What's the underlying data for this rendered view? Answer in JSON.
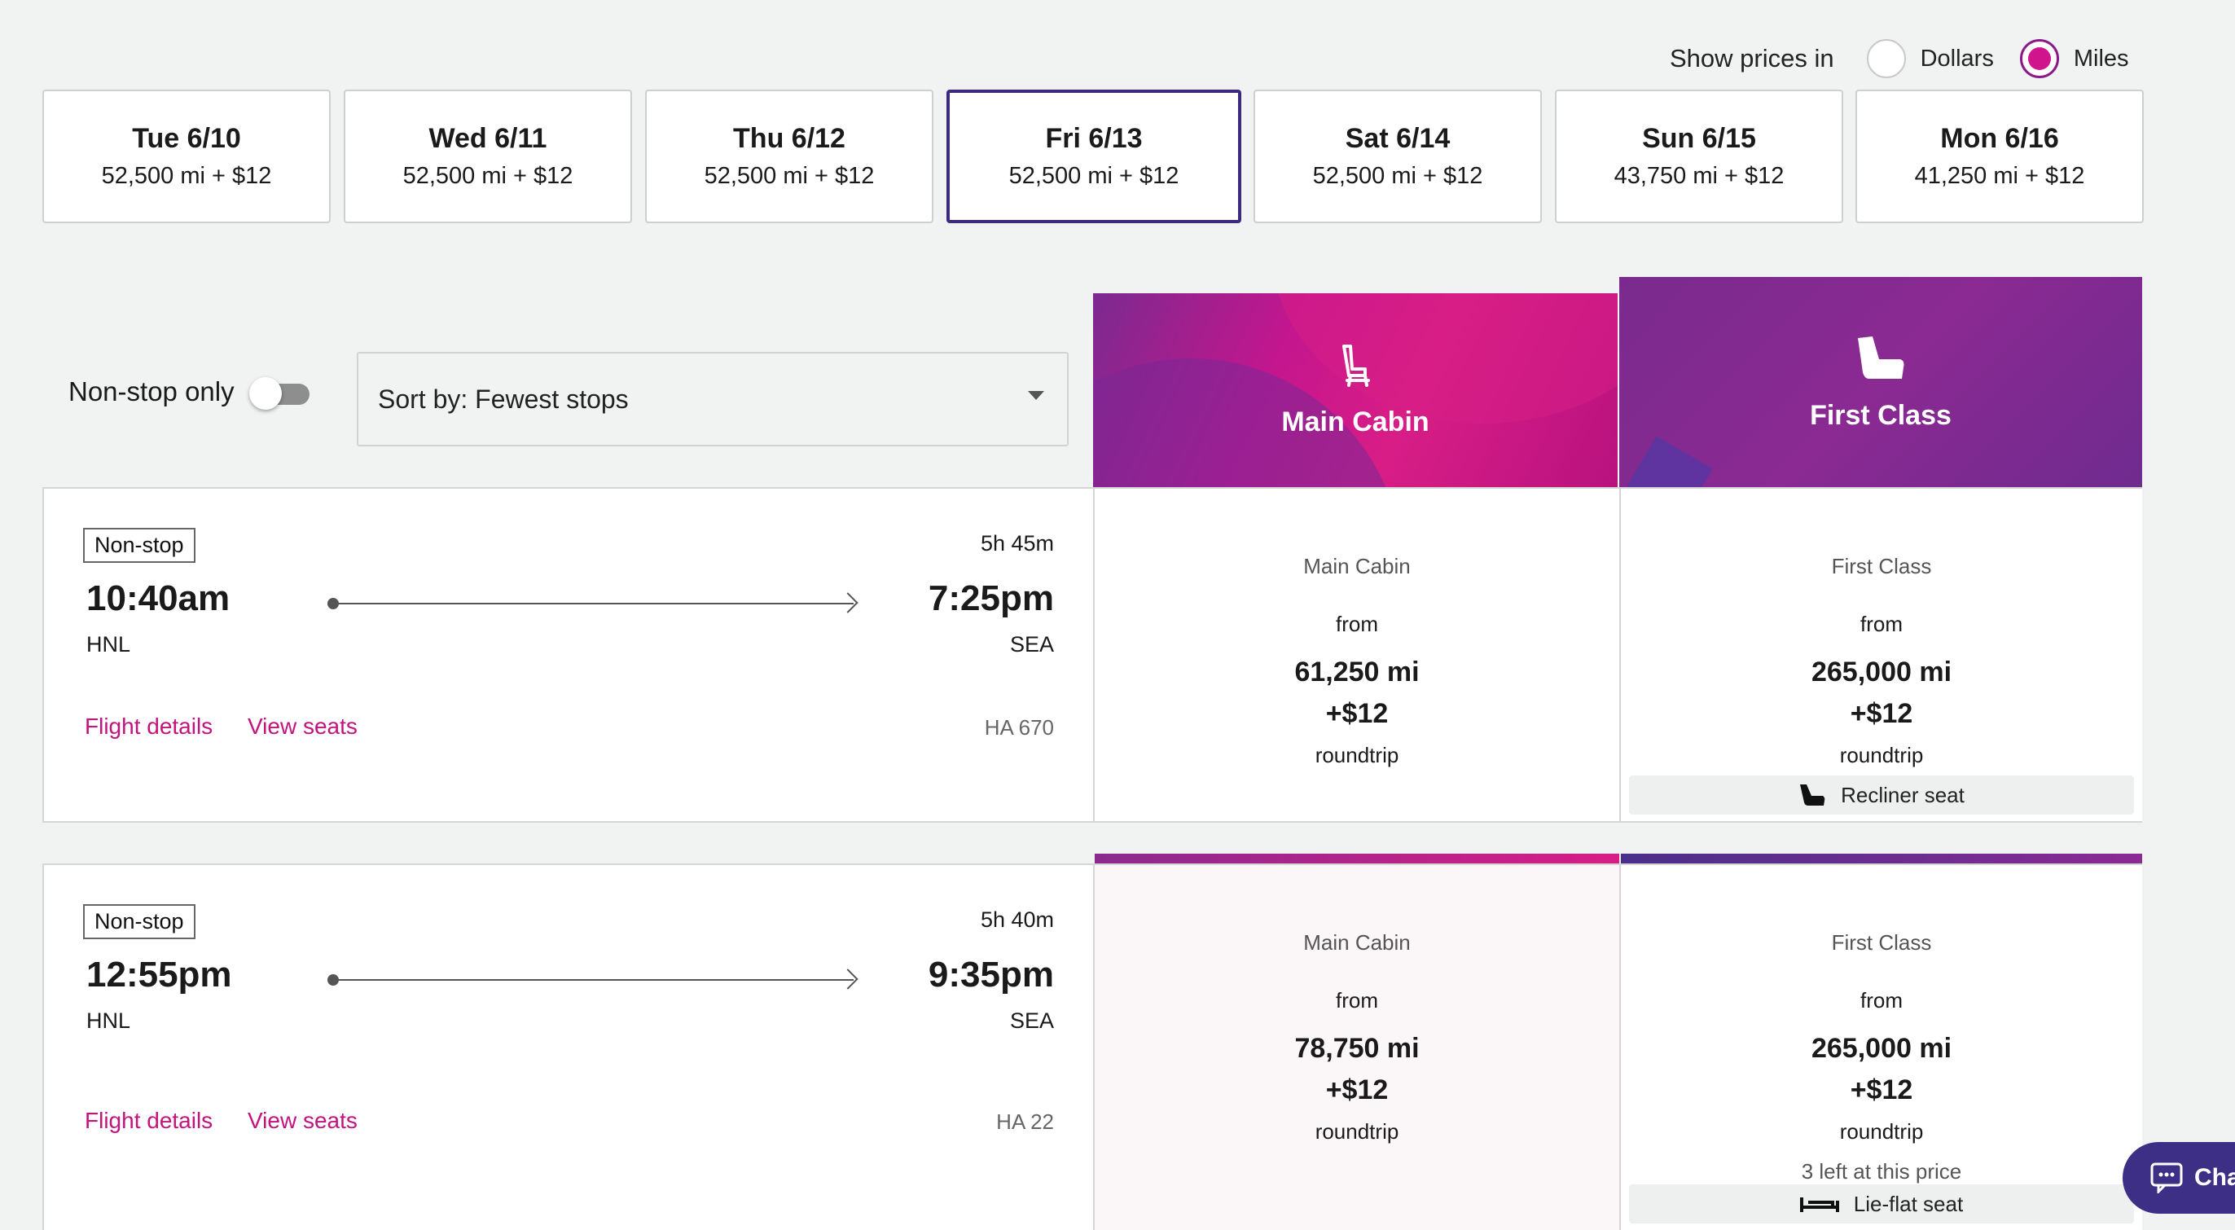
{
  "price_toggle": {
    "label": "Show prices in",
    "options": [
      {
        "label": "Dollars",
        "selected": false
      },
      {
        "label": "Miles",
        "selected": true
      }
    ]
  },
  "date_tabs": [
    {
      "day": "Tue 6/10",
      "price": "52,500 mi + $12"
    },
    {
      "day": "Wed 6/11",
      "price": "52,500 mi + $12"
    },
    {
      "day": "Thu 6/12",
      "price": "52,500 mi + $12"
    },
    {
      "day": "Fri 6/13",
      "price": "52,500 mi + $12",
      "selected": true
    },
    {
      "day": "Sat 6/14",
      "price": "52,500 mi + $12"
    },
    {
      "day": "Sun 6/15",
      "price": "43,750 mi + $12"
    },
    {
      "day": "Mon 6/16",
      "price": "41,250 mi + $12"
    }
  ],
  "filters": {
    "nonstop_label": "Non-stop only",
    "nonstop_on": false,
    "sort_label": "Sort by: Fewest stops"
  },
  "cabins": {
    "main": {
      "title": "Main Cabin",
      "icon": "seat-icon"
    },
    "first": {
      "title": "First Class",
      "icon": "first-class-seat-icon"
    }
  },
  "flights": [
    {
      "badge": "Non-stop",
      "duration": "5h 45m",
      "depart_time": "10:40am",
      "depart_code": "HNL",
      "arrive_time": "7:25pm",
      "arrive_code": "SEA",
      "details_label": "Flight details",
      "seats_label": "View seats",
      "flight_number": "HA 670",
      "main": {
        "cabin": "Main Cabin",
        "from": "from",
        "miles": "61,250 mi",
        "tax": "+$12",
        "trip": "roundtrip"
      },
      "first": {
        "cabin": "First Class",
        "from": "from",
        "miles": "265,000 mi",
        "tax": "+$12",
        "trip": "roundtrip",
        "seat": "Recliner seat"
      }
    },
    {
      "badge": "Non-stop",
      "duration": "5h 40m",
      "depart_time": "12:55pm",
      "depart_code": "HNL",
      "arrive_time": "9:35pm",
      "arrive_code": "SEA",
      "details_label": "Flight details",
      "seats_label": "View seats",
      "flight_number": "HA 22",
      "main": {
        "cabin": "Main Cabin",
        "from": "from",
        "miles": "78,750 mi",
        "tax": "+$12",
        "trip": "roundtrip"
      },
      "first": {
        "cabin": "First Class",
        "from": "from",
        "miles": "265,000 mi",
        "tax": "+$12",
        "trip": "roundtrip",
        "availability": "3 left at this price",
        "seat": "Lie-flat seat"
      }
    }
  ],
  "chat": {
    "label": "Cha",
    "icon": "chat-icon"
  },
  "colors": {
    "accent_pink": "#c2137f",
    "selected_border": "#3b2a7e",
    "chat_bg": "#3d2f86"
  }
}
